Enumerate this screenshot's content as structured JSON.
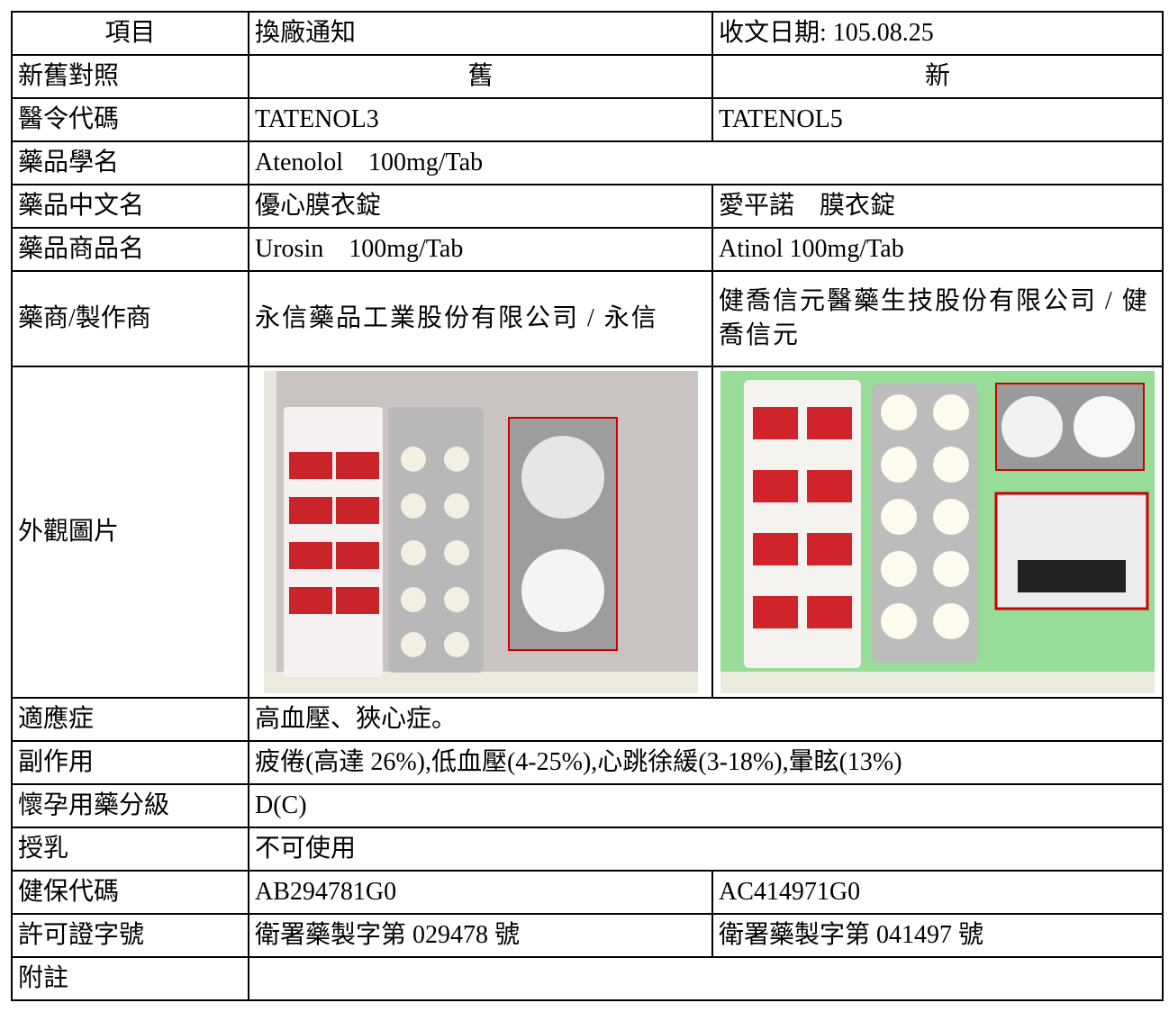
{
  "table": {
    "rows": [
      [
        "項目",
        "換廠通知",
        "收文日期: 105.08.25"
      ],
      [
        "新舊對照",
        "舊",
        "新"
      ],
      [
        "醫令代碼",
        "TATENOL3",
        "TATENOL5"
      ],
      [
        "藥品學名",
        "Atenolol　100mg/Tab"
      ],
      [
        "藥品中文名",
        "優心膜衣錠",
        "愛平諾　膜衣錠"
      ],
      [
        "藥品商品名",
        "Urosin　100mg/Tab",
        "Atinol 100mg/Tab"
      ],
      [
        "藥商/製作商",
        "永信藥品工業股份有限公司 / 永信",
        "健喬信元醫藥生技股份有限公司 / 健喬信元"
      ],
      [
        "外觀圖片"
      ],
      [
        "適應症",
        "高血壓、狹心症。"
      ],
      [
        "副作用",
        "疲倦(高達 26%),低血壓(4-25%),心跳徐緩(3-18%),暈眩(13%)"
      ],
      [
        "懷孕用藥分級",
        "D(C)"
      ],
      [
        "授乳",
        "不可使用"
      ],
      [
        "健保代碼",
        "AB294781G0",
        "AC414971G0"
      ],
      [
        "許可證字號",
        "衛署藥製字第 029478 號",
        "衛署藥製字第 041497 號"
      ],
      [
        "附註"
      ]
    ]
  }
}
